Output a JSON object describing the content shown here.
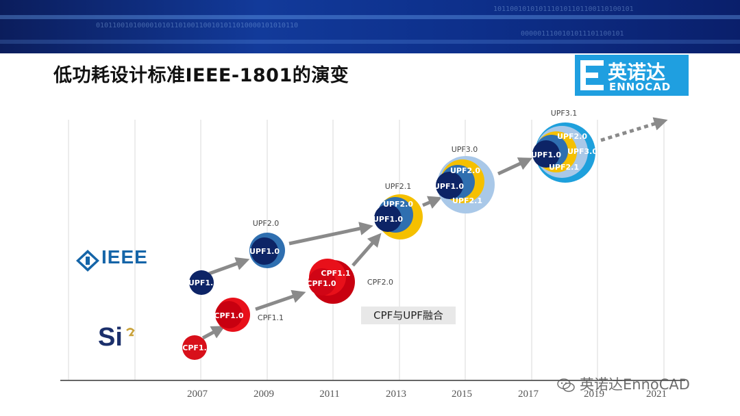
{
  "title": "低功耗设计标准IEEE-1801的演变",
  "logo": {
    "cn": "英诺达",
    "en": "ENNOCAD"
  },
  "orgs": {
    "ieee": "IEEE",
    "si2": "Si"
  },
  "years": [
    "2007",
    "2009",
    "2011",
    "2013",
    "2015",
    "2017",
    "2019",
    "2021"
  ],
  "merge_note": "CPF与UPF融合",
  "watermark": "英诺达EnnoCAD",
  "versions": {
    "upf1_0": "UPF1.0",
    "upf2_0": "UPF2.0",
    "upf2_1": "UPF2.1",
    "upf3_0": "UPF3.0",
    "upf3_1": "UPF3.1",
    "cpf1_0": "CPF1.0",
    "cpf1_1": "CPF1.1",
    "cpf2_0": "CPF2.0",
    "upf1_trunc": "UPF1.",
    "cpf1_trunc": "CPF1."
  },
  "colors": {
    "navy": "#0d2466",
    "blue": "#2f6fb0",
    "red": "#d8101a",
    "yellow": "#f5c000",
    "lightblue": "#a9c8e8",
    "cyan": "#1ea0dc",
    "arrow": "#8a8a8a"
  }
}
